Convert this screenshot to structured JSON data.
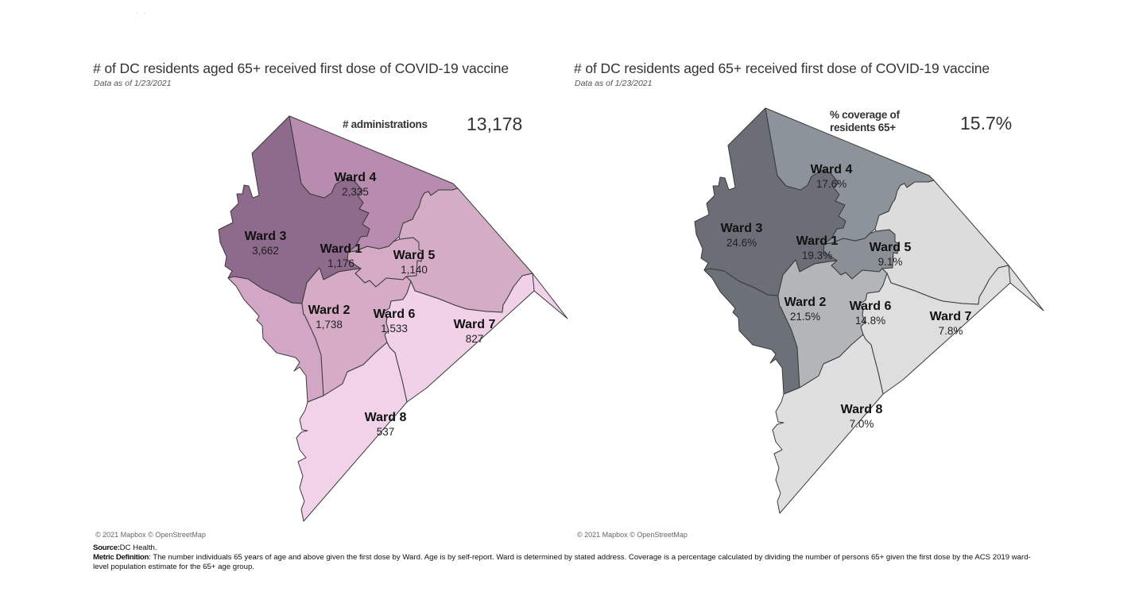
{
  "panels": [
    {
      "id": "administrations",
      "title": "# of DC residents aged 65+ received first dose of COVID-19 vaccine",
      "subtitle": "Data as of 1/23/2021",
      "kpi_label": "# administrations",
      "kpi_value": "13,178",
      "attribution": "© 2021 Mapbox © OpenStreetMap",
      "color_scheme": "purple",
      "wards": [
        {
          "name": "Ward 1",
          "value": "1,176",
          "fill": "#d5aac5"
        },
        {
          "name": "Ward 2",
          "value": "1,738",
          "fill": "#d2a7c5"
        },
        {
          "name": "Ward 3",
          "value": "3,662",
          "fill": "#8e6a8c"
        },
        {
          "name": "Ward 4",
          "value": "2,335",
          "fill": "#b78caf"
        },
        {
          "name": "Ward 5",
          "value": "1,140",
          "fill": "#d5acc6"
        },
        {
          "name": "Ward 6",
          "value": "1,533",
          "fill": "#d5abc6"
        },
        {
          "name": "Ward 7",
          "value": "827",
          "fill": "#f0d1e7"
        },
        {
          "name": "Ward 8",
          "value": "537",
          "fill": "#f1d2e8"
        }
      ]
    },
    {
      "id": "coverage",
      "title": "# of DC residents aged 65+ received first dose of COVID-19 vaccine",
      "subtitle": "Data as of 1/23/2021",
      "kpi_label_line1": "% coverage of",
      "kpi_label_line2": "residents 65+",
      "kpi_value": "15.7%",
      "attribution": "© 2021 Mapbox © OpenStreetMap",
      "color_scheme": "gray",
      "wards": [
        {
          "name": "Ward 1",
          "value": "19.3%",
          "fill": "#8a9096"
        },
        {
          "name": "Ward 2",
          "value": "21.5%",
          "fill": "#6c7079"
        },
        {
          "name": "Ward 3",
          "value": "24.6%",
          "fill": "#6b6e77"
        },
        {
          "name": "Ward 4",
          "value": "17.6%",
          "fill": "#8d939a"
        },
        {
          "name": "Ward 5",
          "value": "9.1%",
          "fill": "#dcdcdc"
        },
        {
          "name": "Ward 6",
          "value": "14.8%",
          "fill": "#b3b6b9"
        },
        {
          "name": "Ward 7",
          "value": "7.8%",
          "fill": "#dedede"
        },
        {
          "name": "Ward 8",
          "value": "7.0%",
          "fill": "#dfdfdf"
        }
      ]
    }
  ],
  "footer": {
    "source_label": "Source:",
    "source_text": "DC Health.",
    "definition_label": "Metric Definition",
    "definition_text": ": The number individuals 65 years of age and above given the first dose by Ward. Age is by self-report. Ward is determined by stated address. Coverage is a percentage calculated by dividing the number of persons 65+ given the first dose by the ACS 2019 ward-level population estimate for the 65+ age group."
  }
}
